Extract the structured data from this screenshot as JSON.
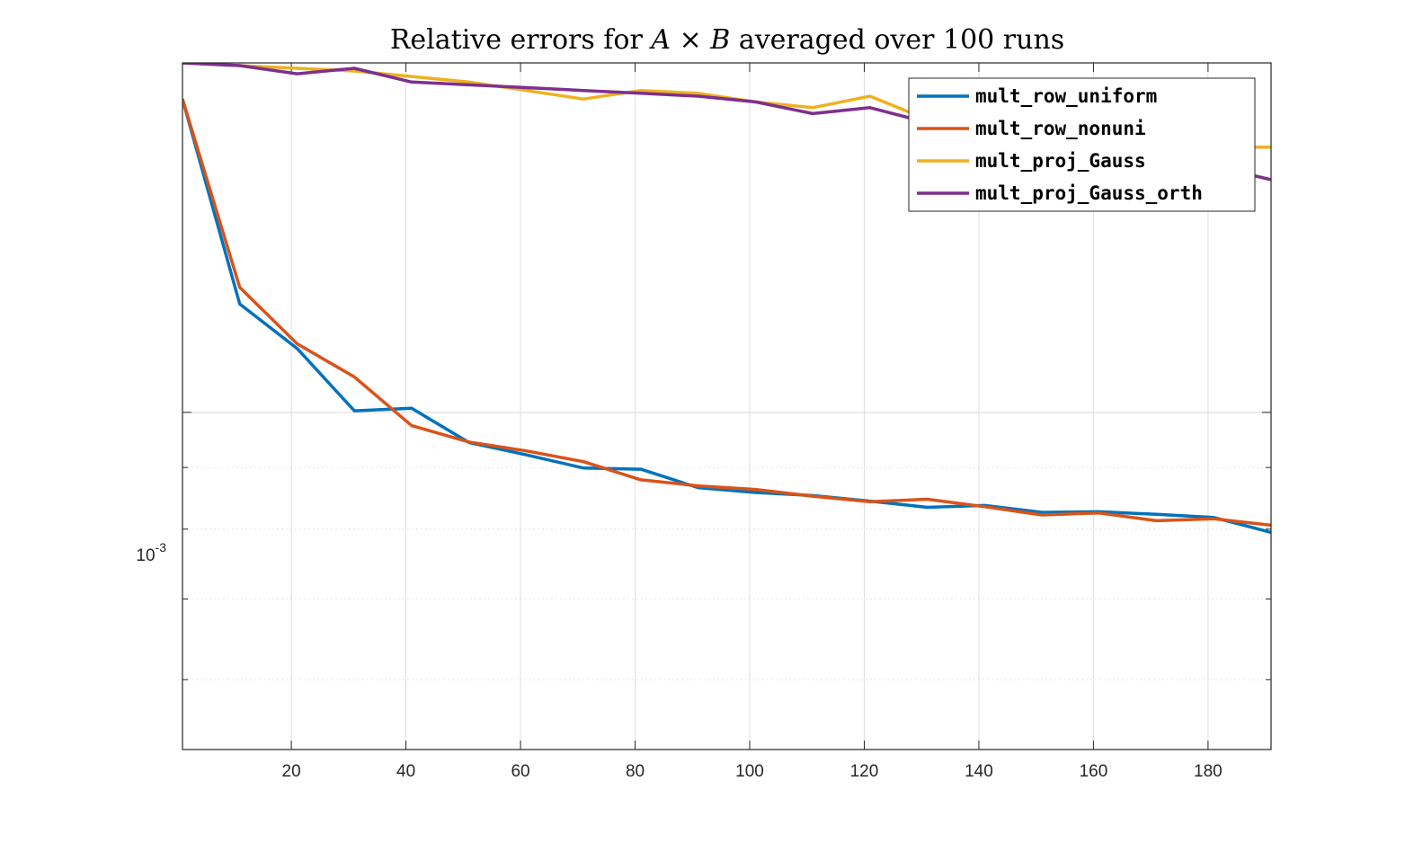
{
  "chart_data": {
    "type": "line",
    "title_parts": {
      "prefix": "Relative errors for ",
      "var_a": "A",
      "operator": " × ",
      "var_b": "B",
      "suffix": " averaged over 100 runs"
    },
    "xlabel": "",
    "ylabel": "",
    "xlim": [
      1,
      191
    ],
    "ylim": [
      0.000525,
      0.00195
    ],
    "yscale": "log",
    "grid": true,
    "legend_position": "top-right",
    "x_ticks": [
      20,
      40,
      60,
      80,
      100,
      120,
      140,
      160,
      180
    ],
    "y_tick_label": {
      "base": "10",
      "exponent": "-3"
    },
    "x": [
      1,
      11,
      21,
      31,
      41,
      51,
      61,
      71,
      81,
      91,
      101,
      111,
      121,
      131,
      141,
      151,
      161,
      171,
      181,
      191
    ],
    "series": [
      {
        "name": "mult_row_uniform",
        "color": "#0072BD",
        "values": [
          0.00182,
          0.00123,
          0.00113,
          0.001003,
          0.001008,
          0.000944,
          0.000922,
          0.000899,
          0.000897,
          0.000866,
          0.000858,
          0.000853,
          0.000844,
          0.000834,
          0.000837,
          0.000826,
          0.000827,
          0.000823,
          0.000818,
          0.000795
        ]
      },
      {
        "name": "mult_row_nonuni",
        "color": "#D95319",
        "values": [
          0.00182,
          0.00127,
          0.00114,
          0.00107,
          0.000975,
          0.000945,
          0.000929,
          0.00091,
          0.000879,
          0.000869,
          0.000863,
          0.000852,
          0.000843,
          0.000847,
          0.000835,
          0.000822,
          0.000825,
          0.000813,
          0.000816,
          0.000806
        ]
      },
      {
        "name": "mult_proj_Gauss",
        "color": "#EDB120",
        "values": [
          0.00195,
          0.00194,
          0.00193,
          0.00192,
          0.0019,
          0.00188,
          0.00185,
          0.00182,
          0.00185,
          0.00184,
          0.00181,
          0.00179,
          0.00183,
          0.00175,
          0.00172,
          0.0017,
          0.00168,
          0.00167,
          0.00166,
          0.00166
        ]
      },
      {
        "name": "mult_proj_Gauss_orth",
        "color": "#7E2F8E",
        "values": [
          0.00195,
          0.00194,
          0.00191,
          0.00193,
          0.00188,
          0.00187,
          0.00186,
          0.00185,
          0.00184,
          0.00183,
          0.00181,
          0.00177,
          0.00179,
          0.00174,
          0.00171,
          0.00168,
          0.00166,
          0.00163,
          0.0016,
          0.00156
        ]
      }
    ]
  }
}
